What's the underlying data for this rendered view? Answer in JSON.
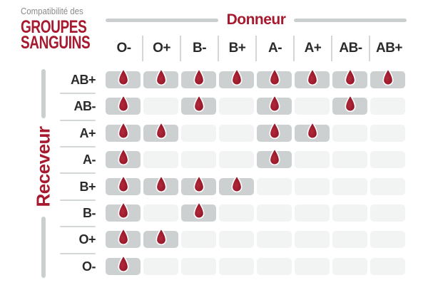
{
  "title": {
    "subtitle": "Compatibilité des",
    "line1": "GROUPES",
    "line2": "SANGUINS"
  },
  "axes": {
    "donor": "Donneur",
    "receiver": "Receveur"
  },
  "chart_data": {
    "type": "heatmap",
    "title": "Compatibilité des GROUPES SANGUINS",
    "x_axis_label": "Donneur",
    "y_axis_label": "Receveur",
    "columns": [
      "O-",
      "O+",
      "B-",
      "B+",
      "A-",
      "A+",
      "AB-",
      "AB+"
    ],
    "rows": [
      "AB+",
      "AB-",
      "A+",
      "A-",
      "B+",
      "B-",
      "O+",
      "O-"
    ],
    "cell_meaning": "1 = blood drop shown (receiver row can receive from donor column), 0 = empty light cell",
    "matrix": [
      [
        1,
        1,
        1,
        1,
        1,
        1,
        1,
        1
      ],
      [
        1,
        0,
        1,
        0,
        1,
        0,
        1,
        0
      ],
      [
        1,
        1,
        0,
        0,
        1,
        1,
        0,
        0
      ],
      [
        1,
        0,
        0,
        0,
        1,
        0,
        0,
        0
      ],
      [
        1,
        1,
        1,
        1,
        0,
        0,
        0,
        0
      ],
      [
        1,
        0,
        1,
        0,
        0,
        0,
        0,
        0
      ],
      [
        1,
        1,
        0,
        0,
        0,
        0,
        0,
        0
      ],
      [
        1,
        0,
        0,
        0,
        0,
        0,
        0,
        0
      ]
    ]
  },
  "icons": {
    "drop": "blood-drop-icon"
  },
  "colors": {
    "accent_red": "#A6192E",
    "drop_red_light": "#B12A3B",
    "drop_red_dark": "#8E1124",
    "active_cell": "#CDD0D1",
    "inactive_cell": "#F2F3F3",
    "axis_line_gray": "#CBCFD0",
    "divider_gray": "#D4D7D8",
    "header_text": "#2B2B2B",
    "subtitle_gray": "#8A8A8A"
  }
}
